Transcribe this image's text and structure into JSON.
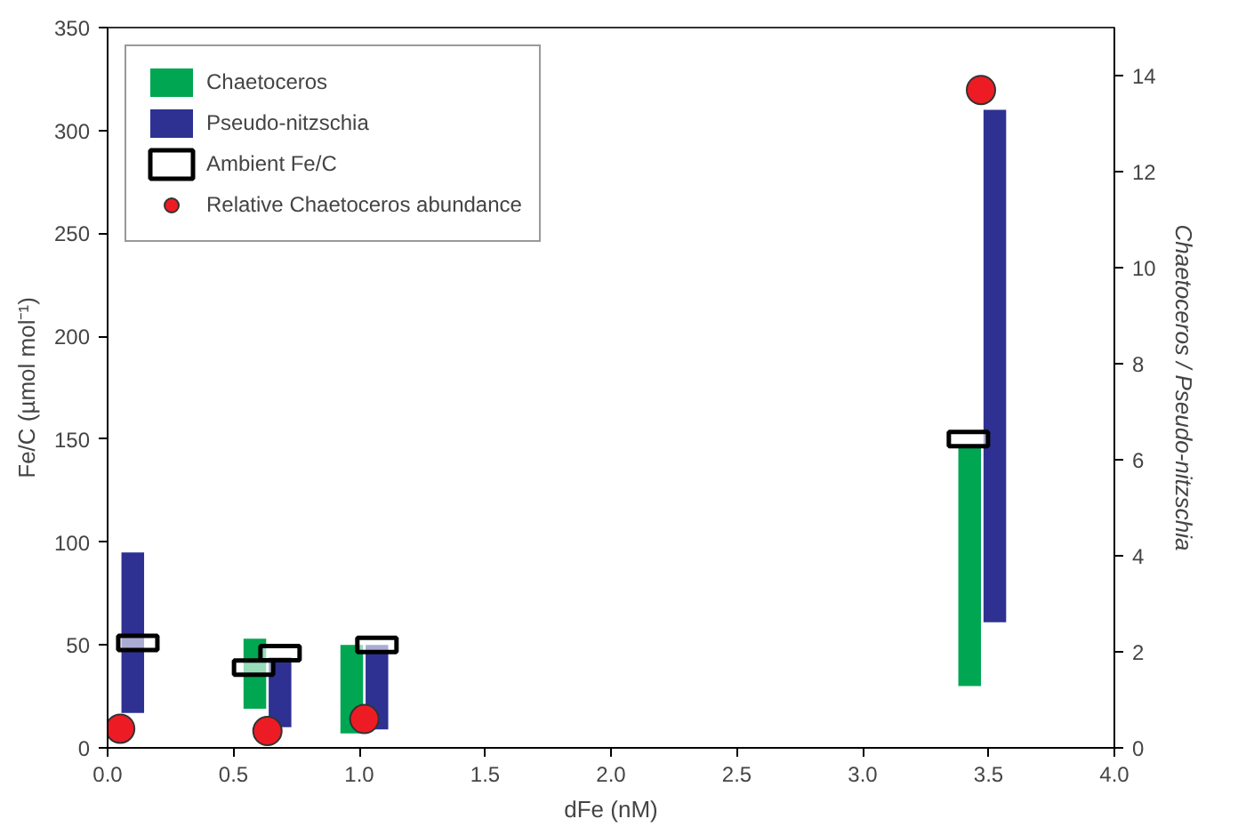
{
  "chart_data": {
    "type": "bar",
    "xlabel": "dFe (nM)",
    "ylabel": "Fe/C (µmol mol⁻¹)",
    "y2label": "Chaetoceros / Pseudo-nitzschia",
    "xlim": [
      0,
      4
    ],
    "xticks": [
      {
        "value": 0,
        "label": "0.0"
      },
      {
        "value": 0.5,
        "label": "0.5"
      },
      {
        "value": 1,
        "label": "1.0"
      },
      {
        "value": 1.5,
        "label": "1.5"
      },
      {
        "value": 2,
        "label": "2.0"
      },
      {
        "value": 2.5,
        "label": "2.5"
      },
      {
        "value": 3,
        "label": "3.0"
      },
      {
        "value": 3.5,
        "label": "3.5"
      },
      {
        "value": 4,
        "label": "4.0"
      }
    ],
    "ylim": [
      0,
      350
    ],
    "yticks": [
      0,
      50,
      100,
      150,
      200,
      250,
      300,
      350
    ],
    "y2lim": [
      0,
      15
    ],
    "y2ticks": [
      0,
      2,
      4,
      6,
      8,
      10,
      12,
      14
    ],
    "grid": false,
    "legend": "top left",
    "series": [
      {
        "name": "Chaetoceros",
        "color": "#00a651",
        "x": [
          0.585,
          0.97,
          3.425
        ],
        "base": [
          19,
          7,
          30
        ],
        "values": [
          34,
          43,
          116
        ]
      },
      {
        "name": "Pseudo-nitzschia",
        "color": "#2e3192",
        "x": [
          0.1,
          0.685,
          1.07,
          3.525
        ],
        "base": [
          17,
          10,
          9,
          61
        ],
        "values": [
          78,
          34,
          41,
          249
        ]
      },
      {
        "name": "Ambient Fe/C",
        "type": "scatter",
        "marker": "square",
        "color": "#ffffff",
        "x": [
          0.12,
          0.58,
          0.685,
          1.07,
          3.42
        ],
        "values": [
          51,
          39,
          46,
          50,
          150
        ]
      },
      {
        "name": "Relative Chaetoceros abundance",
        "type": "scatter",
        "marker": "circle",
        "axis": "y2",
        "color": "#ed1c24",
        "x": [
          0.05,
          0.635,
          1.02,
          3.47
        ],
        "values": [
          0.4,
          0.35,
          0.6,
          13.7
        ]
      }
    ]
  }
}
